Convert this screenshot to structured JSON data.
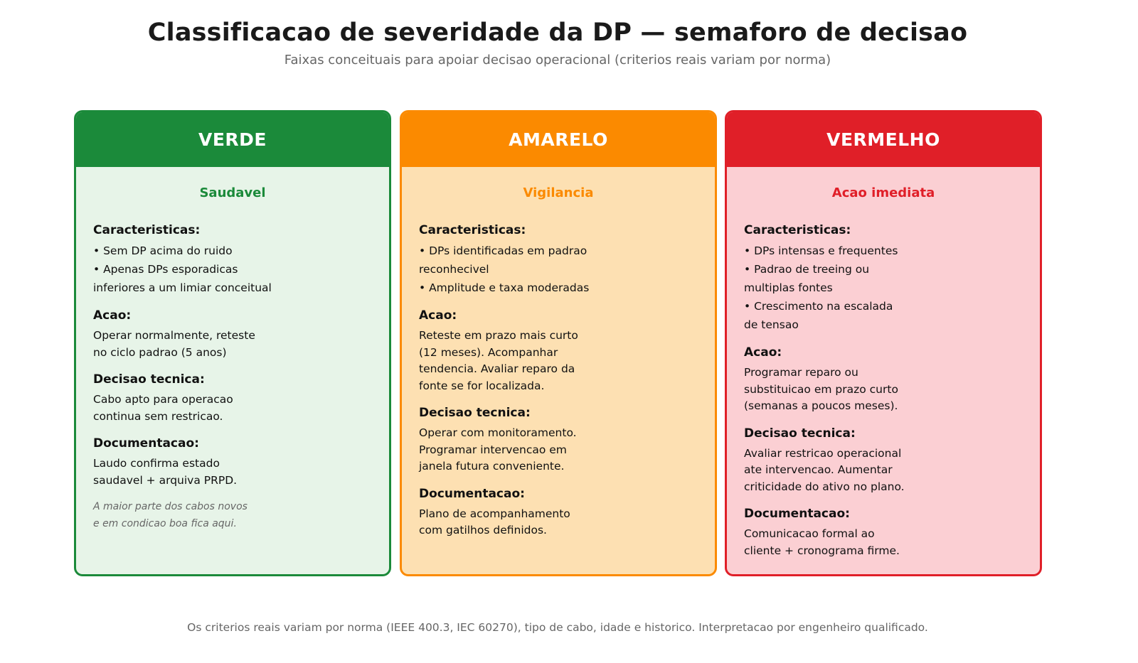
{
  "title": "Classificacao de severidade da DP — semaforo de decisao",
  "subtitle": "Faixas conceituais para apoiar decisao operacional (criterios reais variam por norma)",
  "cards": [
    {
      "label": "VERDE",
      "status": "Saudavel",
      "accent": "#1b8a3a",
      "background": "#e7f4e8",
      "characteristics_title": "Caracteristicas:",
      "characteristics": [
        "• Sem DP acima do ruido",
        "• Apenas DPs esporadicas\ninferiores a um limiar conceitual"
      ],
      "action_title": "Acao:",
      "action": "Operar normalmente, reteste\nno ciclo padrao (5 anos)",
      "decision_title": "Decisao tecnica:",
      "decision": "Cabo apto para operacao\ncontinua sem restricao.",
      "documentation_title": "Documentacao:",
      "documentation": "Laudo confirma estado\nsaudavel + arquiva PRPD.",
      "note": "A maior parte dos cabos novos\ne em condicao boa fica aqui."
    },
    {
      "label": "AMARELO",
      "status": "Vigilancia",
      "accent": "#fb8a00",
      "background": "#fde0b2",
      "characteristics_title": "Caracteristicas:",
      "characteristics": [
        "• DPs identificadas em padrao\nreconhecivel",
        "• Amplitude e taxa moderadas"
      ],
      "action_title": "Acao:",
      "action": "Reteste em prazo mais curto\n(12 meses). Acompanhar\ntendencia. Avaliar reparo da\nfonte se for localizada.",
      "decision_title": "Decisao tecnica:",
      "decision": "Operar com monitoramento.\nProgramar intervencao em\njanela futura conveniente.",
      "documentation_title": "Documentacao:",
      "documentation": "Plano de acompanhamento\ncom gatilhos definidos.",
      "note": ""
    },
    {
      "label": "VERMELHO",
      "status": "Acao imediata",
      "accent": "#e01f28",
      "background": "#fbcfd3",
      "characteristics_title": "Caracteristicas:",
      "characteristics": [
        "• DPs intensas e frequentes",
        "• Padrao de treeing ou\nmultiplas fontes",
        "• Crescimento na escalada\nde tensao"
      ],
      "action_title": "Acao:",
      "action": "Programar reparo ou\nsubstituicao em prazo curto\n(semanas a poucos meses).",
      "decision_title": "Decisao tecnica:",
      "decision": "Avaliar restricao operacional\nate intervencao. Aumentar\ncriticidade do ativo no plano.",
      "documentation_title": "Documentacao:",
      "documentation": "Comunicacao formal ao\ncliente + cronograma firme.",
      "note": ""
    }
  ],
  "footer": "Os criterios reais variam por norma (IEEE 400.3, IEC 60270), tipo de cabo, idade e historico. Interpretacao por engenheiro qualificado."
}
